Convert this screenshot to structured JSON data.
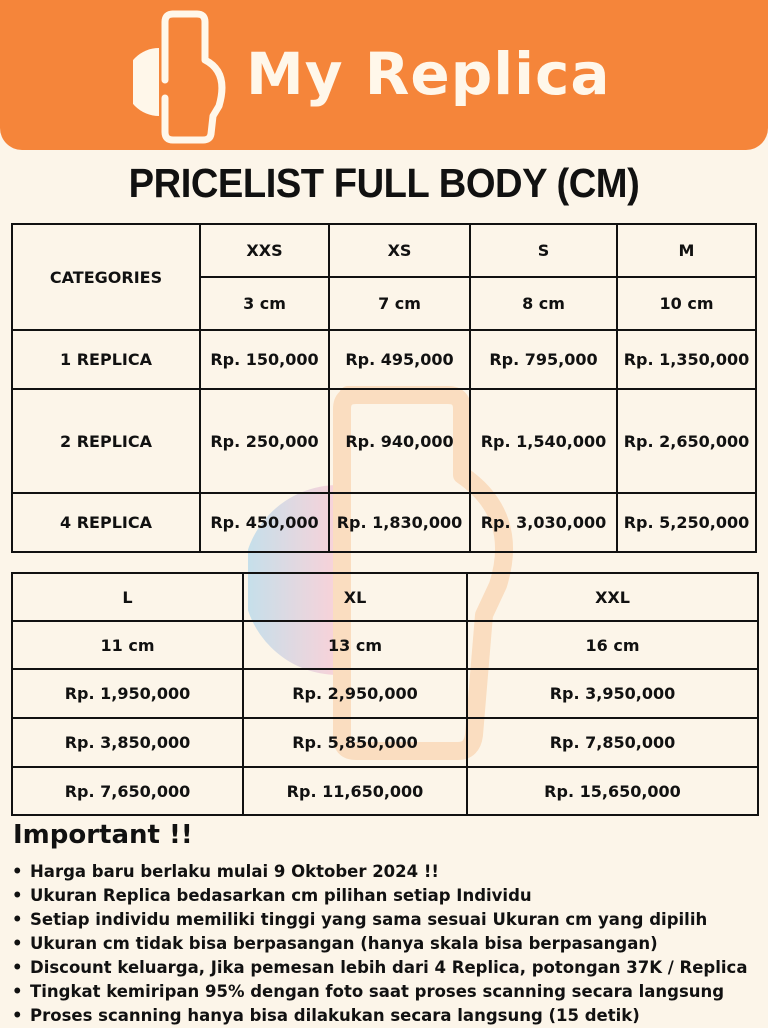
{
  "brand": {
    "name": "My Replica",
    "color": "#f5853a"
  },
  "title": "PRICELIST FULL BODY (CM)",
  "table1": {
    "categories_label": "CATEGORIES",
    "sizes": [
      "XXS",
      "XS",
      "S",
      "M"
    ],
    "heights": [
      "3 cm",
      "7 cm",
      "8 cm",
      "10 cm"
    ],
    "rows": [
      {
        "label": "1 REPLICA",
        "prices": [
          "Rp. 150,000",
          "Rp. 495,000",
          "Rp. 795,000",
          "Rp. 1,350,000"
        ]
      },
      {
        "label": "2 REPLICA",
        "prices": [
          "Rp. 250,000",
          "Rp. 940,000",
          "Rp. 1,540,000",
          "Rp. 2,650,000"
        ]
      },
      {
        "label": "4 REPLICA",
        "prices": [
          "Rp. 450,000",
          "Rp. 1,830,000",
          "Rp. 3,030,000",
          "Rp. 5,250,000"
        ]
      }
    ]
  },
  "table2": {
    "sizes": [
      "L",
      "XL",
      "XXL"
    ],
    "heights": [
      "11 cm",
      "13 cm",
      "16 cm"
    ],
    "rows": [
      [
        "Rp. 1,950,000",
        "Rp. 2,950,000",
        "Rp. 3,950,000"
      ],
      [
        "Rp. 3,850,000",
        "Rp. 5,850,000",
        "Rp. 7,850,000"
      ],
      [
        "Rp. 7,650,000",
        "Rp. 11,650,000",
        "Rp. 15,650,000"
      ]
    ]
  },
  "important": {
    "title": "Important !!",
    "bullet": "•",
    "items": [
      "Harga baru berlaku mulai 9 Oktober 2024 !!",
      "Ukuran Replica bedasarkan cm pilihan setiap Individu",
      "Setiap individu memiliki tinggi yang sama sesuai Ukuran cm yang dipilih",
      "Ukuran cm tidak bisa berpasangan (hanya skala bisa berpasangan)",
      "Discount keluarga, Jika pemesan lebih dari 4 Replica, potongan 37K / Replica",
      "Tingkat kemiripan 95% dengan foto saat proses scanning secara langsung",
      "Proses scanning hanya bisa dilakukan secara langsung (15 detik)"
    ]
  }
}
